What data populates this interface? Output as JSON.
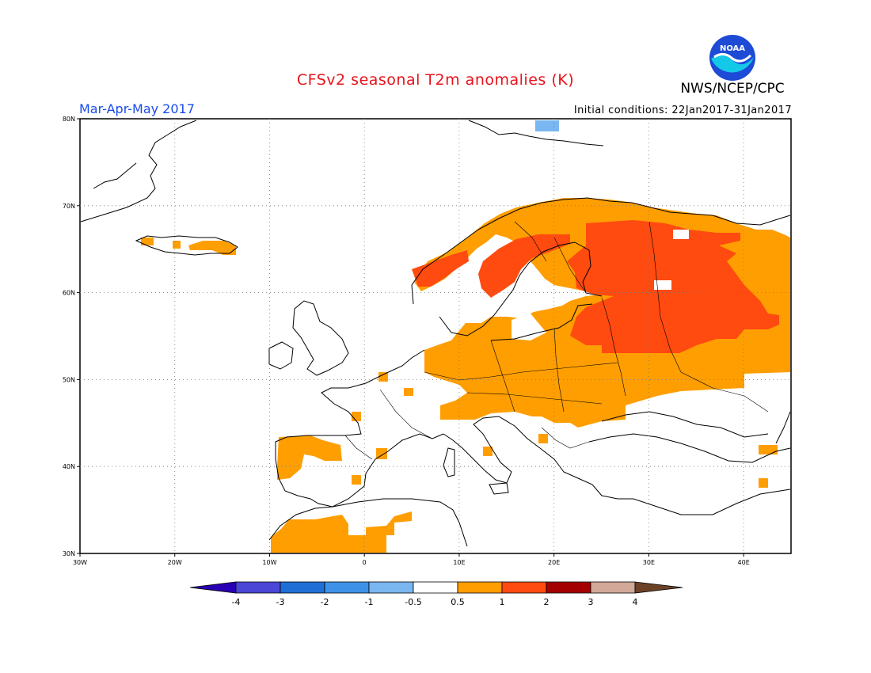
{
  "header": {
    "title": "CFSv2 seasonal T2m anomalies (K)",
    "agency": "NWS/NCEP/CPC",
    "logo_text": "NOAA",
    "season": "Mar-Apr-May 2017",
    "initial_conditions": "Initial conditions: 22Jan2017-31Jan2017"
  },
  "axes": {
    "lon_ticks": [
      {
        "value": -30,
        "label": "30W"
      },
      {
        "value": -20,
        "label": "20W"
      },
      {
        "value": -10,
        "label": "10W"
      },
      {
        "value": 0,
        "label": "0"
      },
      {
        "value": 10,
        "label": "10E"
      },
      {
        "value": 20,
        "label": "20E"
      },
      {
        "value": 30,
        "label": "30E"
      },
      {
        "value": 40,
        "label": "40E"
      }
    ],
    "lat_ticks": [
      {
        "value": 30,
        "label": "30N"
      },
      {
        "value": 40,
        "label": "40N"
      },
      {
        "value": 50,
        "label": "50N"
      },
      {
        "value": 60,
        "label": "60N"
      },
      {
        "value": 70,
        "label": "70N"
      },
      {
        "value": 80,
        "label": "80N"
      }
    ],
    "lon_range": [
      -30,
      45
    ],
    "lat_range": [
      30,
      80
    ],
    "grid": "dotted"
  },
  "colorbar": {
    "labels": [
      "-4",
      "-3",
      "-2",
      "-1",
      "-0.5",
      "0.5",
      "1",
      "2",
      "3",
      "4"
    ],
    "colors": [
      "#2a00b5",
      "#4b46d6",
      "#1f6fd6",
      "#3d92e8",
      "#7ab6f0",
      "#ffffff",
      "#ff9e00",
      "#ff4a10",
      "#a40000",
      "#d2a898",
      "#6b4226"
    ]
  },
  "anomaly_regions": [
    {
      "level": "0.5-1",
      "color": "#ff9e00",
      "area": "Central and eastern Europe, Baltic region, Scandinavia, western Russia"
    },
    {
      "level": "0.5-1",
      "color": "#ff9e00",
      "area": "Iberian Peninsula (northwest) and northwest Africa"
    },
    {
      "level": "0.5-1",
      "color": "#ff9e00",
      "area": "Southern Iceland"
    },
    {
      "level": "1-2",
      "color": "#ff4a10",
      "area": "Finland, Baltic states, western Russia, interior Sweden, Norway coast"
    },
    {
      "level": "-1--0.5",
      "color": "#7ab6f0",
      "area": "Svalbard"
    }
  ]
}
